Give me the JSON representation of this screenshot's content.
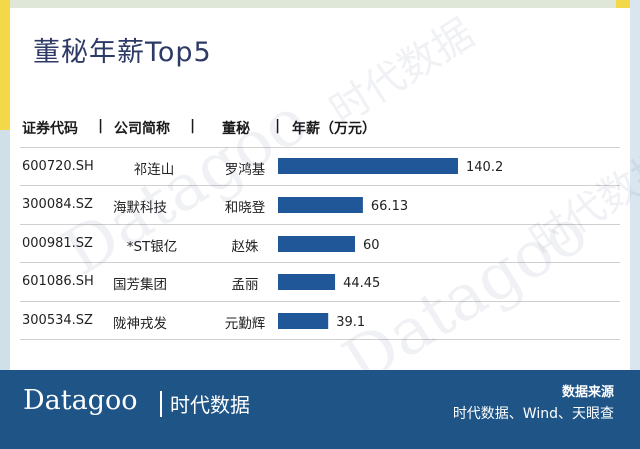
{
  "header": {
    "title": "董秘年薪Top5",
    "columns": [
      "证券代码",
      "公司简称",
      "董秘",
      "年薪（万元）"
    ]
  },
  "rows": [
    {
      "code": "600720.SH",
      "company": "祁连山",
      "secretary": "罗鸿基",
      "salary_label": "140.2"
    },
    {
      "code": "300084.SZ",
      "company": "海默科技",
      "secretary": "和晓登",
      "salary_label": "66.13"
    },
    {
      "code": "000981.SZ",
      "company": "*ST银亿",
      "secretary": "赵姝",
      "salary_label": "60"
    },
    {
      "code": "601086.SH",
      "company": "国芳集团",
      "secretary": "孟丽",
      "salary_label": "44.45"
    },
    {
      "code": "300534.SZ",
      "company": "陇神戎发",
      "secretary": "元勤辉",
      "salary_label": "39.1"
    }
  ],
  "chart_data": {
    "type": "bar",
    "orientation": "horizontal",
    "title": "董秘年薪Top5",
    "categories": [
      "罗鸿基",
      "和晓登",
      "赵姝",
      "孟丽",
      "元勤辉"
    ],
    "values": [
      140.2,
      66.13,
      60,
      44.45,
      39.1
    ],
    "ylabel": "年薪（万元）",
    "bar_color": "#1f5799",
    "grid": false
  },
  "footer": {
    "brand": "Datagoo",
    "brand_cn": "时代数据",
    "source_title": "数据来源",
    "source_text": "时代数据、Wind、天眼查"
  },
  "colors": {
    "footer_bg": "#1f5487",
    "bar": "#1f5799",
    "title": "#2e3a66"
  }
}
